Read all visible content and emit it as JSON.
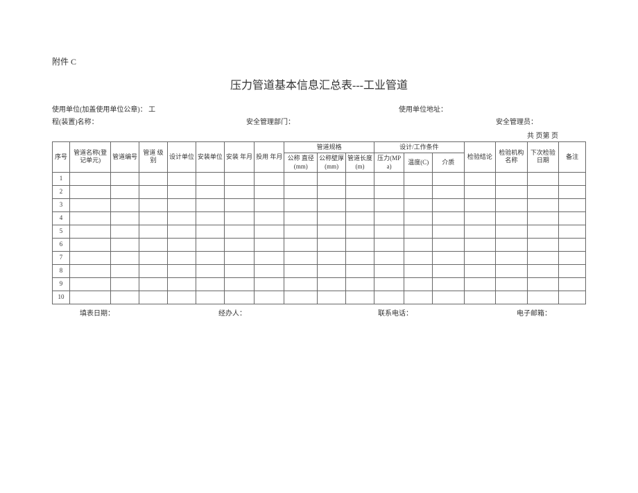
{
  "attachment_label": "附件 C",
  "title": "压力管道基本信息汇总表---工业管道",
  "header": {
    "use_unit_label": "使用单位(加盖使用单位公章)：",
    "project_name_label": "工程(装置)名称：",
    "use_unit_address_label": "使用单位地址：",
    "safety_dept_label": "安全管理部门：",
    "safety_manager_label": "安全管理员：",
    "page_label": "共  页第  页"
  },
  "table": {
    "columns": {
      "seq": "序号",
      "pipe_name": "管道名称(登记单元)",
      "pipe_no": "管道编号",
      "pipe_level": "管道 级别",
      "design_unit": "设计单位",
      "install_unit": "安装单位",
      "install_date": "安装 年月",
      "use_date": "投用 年月",
      "spec_group": "管道规格",
      "cond_group": "设计/工作条件",
      "diameter": "公称 直径(mm)",
      "thickness": "公称壁厚(mm)",
      "length": "管道长度(m)",
      "pressure": "压力(MPa)",
      "temperature": "温度(C)",
      "medium": "介质",
      "inspect_result": "检验结论",
      "inspect_org": "检验机构名称",
      "next_inspect": "下次检验日期",
      "remark": "备注"
    },
    "col_widths": {
      "seq": 22,
      "pipe_name": 52,
      "pipe_no": 36,
      "pipe_level": 36,
      "design_unit": 36,
      "install_unit": 36,
      "install_date": 38,
      "use_date": 38,
      "diameter": 42,
      "thickness": 36,
      "length": 36,
      "pressure": 38,
      "temperature": 36,
      "medium": 40,
      "inspect_result": 40,
      "inspect_org": 40,
      "next_inspect": 40,
      "remark": 34
    },
    "row_count": 10,
    "border_color": "#666666",
    "background_color": "#ffffff",
    "font_size": 9
  },
  "footer": {
    "fill_date_label": "填表日期：",
    "handler_label": "经办人：",
    "phone_label": "联系电话：",
    "email_label": "电子邮箱："
  }
}
